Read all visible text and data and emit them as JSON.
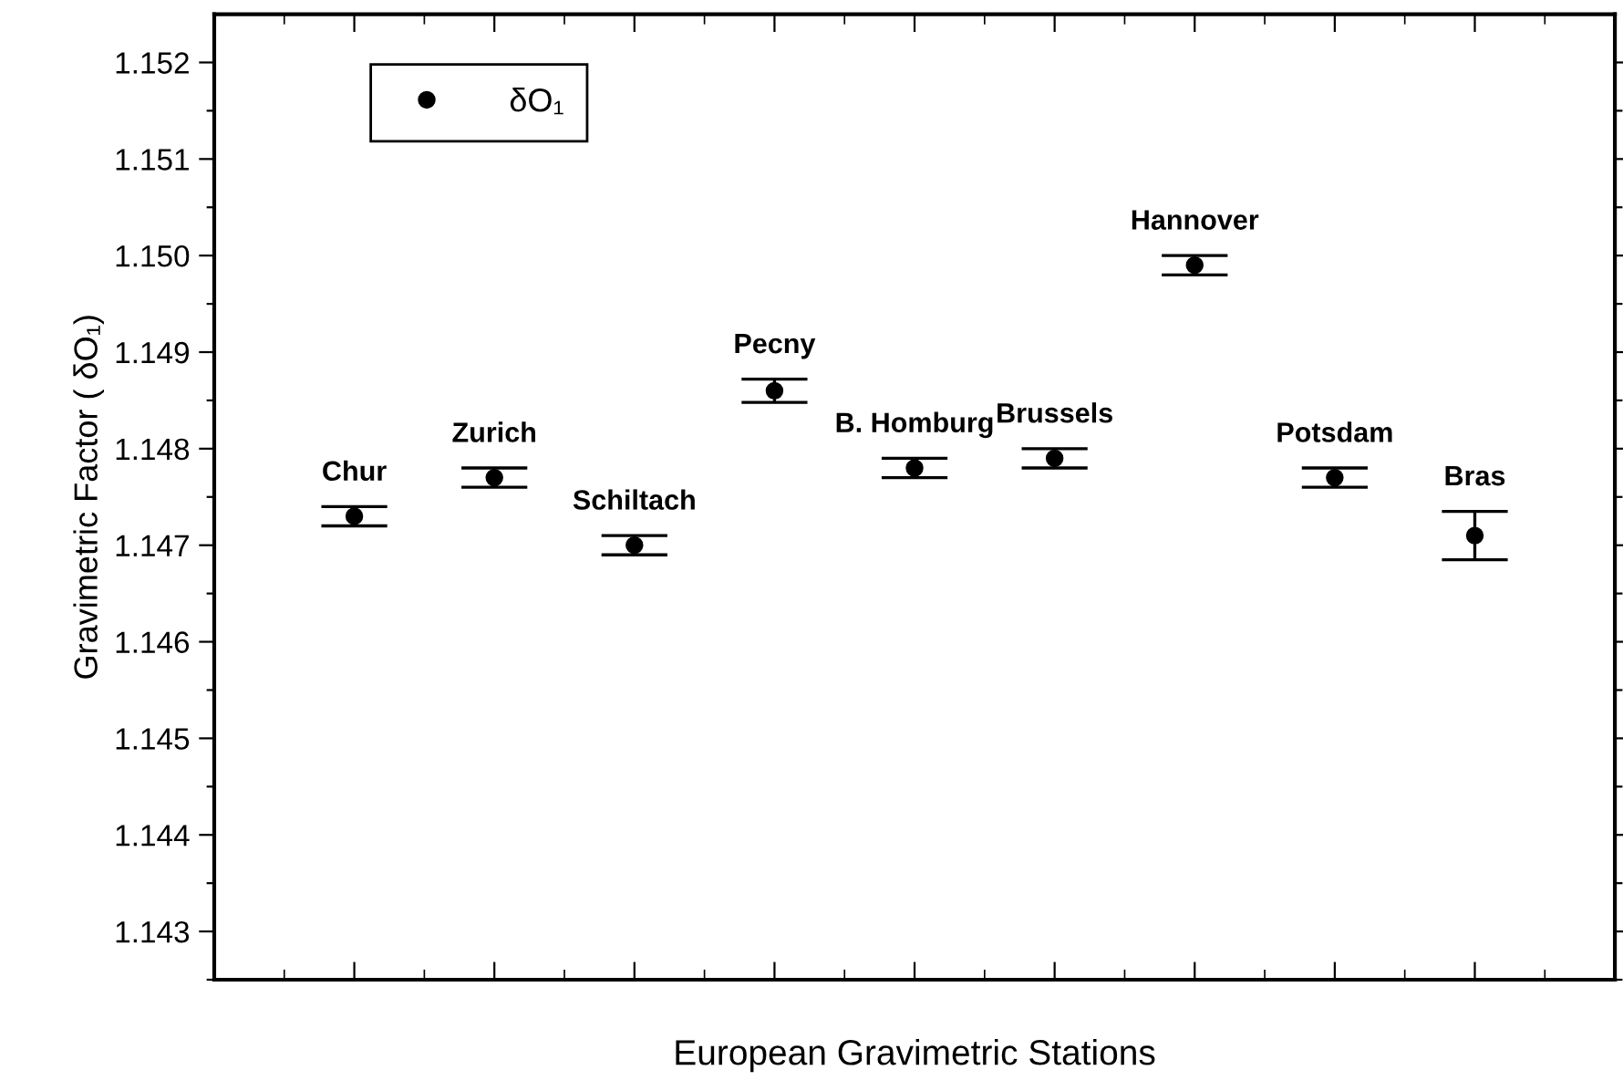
{
  "chart_data": {
    "type": "scatter",
    "xlabel": "European Gravimetric Stations",
    "ylabel": "Gravimetric Factor ( δO₁)",
    "categories": [
      "Chur",
      "Zurich",
      "Schiltach",
      "Pecny",
      "B. Homburg",
      "Brussels",
      "Hannover",
      "Potsdam",
      "Bras"
    ],
    "series": [
      {
        "name": "δO₁",
        "color": "#000000",
        "values": [
          1.1473,
          1.1477,
          1.147,
          1.1486,
          1.1478,
          1.1479,
          1.1499,
          1.1477,
          1.1471
        ],
        "errors": [
          0.0001,
          0.0001,
          0.0001,
          0.00012,
          0.0001,
          0.0001,
          0.0001,
          0.0001,
          0.00025
        ]
      }
    ],
    "ylim": [
      1.1425,
      1.1525
    ],
    "yticks": [
      {
        "value": 1.1425,
        "label": null
      },
      1.143,
      {
        "value": 1.1435,
        "label": null
      },
      1.144,
      {
        "value": 1.1445,
        "label": null
      },
      1.145,
      {
        "value": 1.1455,
        "label": null
      },
      1.146,
      {
        "value": 1.1465,
        "label": null
      },
      1.147,
      {
        "value": 1.1475,
        "label": null
      },
      1.148,
      {
        "value": 1.1485,
        "label": null
      },
      1.149,
      {
        "value": 1.1495,
        "label": null
      },
      {
        "value": 1.15,
        "label": "1.150"
      },
      {
        "value": 1.1505,
        "label": null
      },
      1.151,
      {
        "value": 1.1515,
        "label": null
      },
      1.152
    ],
    "tick_labels": "y",
    "marker": "circle",
    "legend": "top left",
    "grid": false
  }
}
